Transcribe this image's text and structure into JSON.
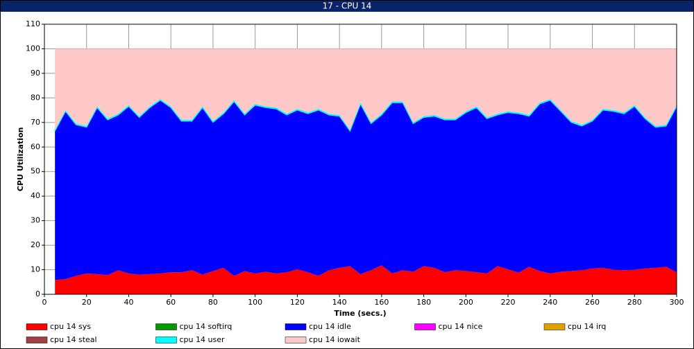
{
  "chart_data": {
    "type": "stacked_area",
    "title": "17 - CPU 14",
    "x_label": "Time (secs.)",
    "y_label": "CPU Utilization",
    "x": [
      5,
      10,
      15,
      20,
      25,
      30,
      35,
      40,
      45,
      50,
      55,
      60,
      65,
      70,
      75,
      80,
      85,
      90,
      95,
      100,
      105,
      110,
      115,
      120,
      125,
      130,
      135,
      140,
      145,
      150,
      155,
      160,
      165,
      170,
      175,
      180,
      185,
      190,
      195,
      200,
      205,
      210,
      215,
      220,
      225,
      230,
      235,
      240,
      245,
      250,
      255,
      260,
      265,
      270,
      275,
      280,
      285,
      290,
      295,
      300
    ],
    "xlim": [
      0,
      300
    ],
    "xticks": [
      0,
      20,
      40,
      60,
      80,
      100,
      120,
      140,
      160,
      180,
      200,
      220,
      240,
      260,
      280,
      300
    ],
    "ylim": [
      0,
      110
    ],
    "yticks": [
      0,
      10,
      20,
      30,
      40,
      50,
      60,
      70,
      80,
      90,
      100,
      110
    ],
    "grid": true,
    "series": [
      {
        "name": "cpu 14 sys",
        "color": "#ff0000",
        "values": [
          5.8,
          6.2,
          7.5,
          8.5,
          8.2,
          7.8,
          9.8,
          8.5,
          8.0,
          8.2,
          8.5,
          9.0,
          9.0,
          9.8,
          8.0,
          9.5,
          10.8,
          7.5,
          9.5,
          8.5,
          9.2,
          8.5,
          9.0,
          10.2,
          9.0,
          7.5,
          9.8,
          10.8,
          11.5,
          8.2,
          9.8,
          11.8,
          8.5,
          9.8,
          9.2,
          11.5,
          10.8,
          9.0,
          9.8,
          9.5,
          9.0,
          8.5,
          11.5,
          10.2,
          8.8,
          11.2,
          9.5,
          8.5,
          9.2,
          9.5,
          9.8,
          10.5,
          10.8,
          10.0,
          9.8,
          10.0,
          10.5,
          10.8,
          11.2,
          9.0
        ]
      },
      {
        "name": "cpu 14 softirq",
        "color": "#009900",
        "values": [
          0,
          0,
          0,
          0,
          0,
          0,
          0,
          0,
          0,
          0,
          0,
          0,
          0,
          0,
          0,
          0,
          0,
          0,
          0,
          0,
          0,
          0,
          0,
          0,
          0,
          0,
          0,
          0,
          0,
          0,
          0,
          0,
          0,
          0,
          0,
          0,
          0,
          0,
          0,
          0,
          0,
          0,
          0,
          0,
          0,
          0,
          0,
          0,
          0,
          0,
          0,
          0,
          0,
          0,
          0,
          0,
          0,
          0,
          0,
          0
        ]
      },
      {
        "name": "cpu 14 idle",
        "color": "#0000ff",
        "values": [
          60.8,
          68.4,
          61.6,
          59.6,
          67.9,
          63.3,
          63.3,
          68.1,
          64.1,
          67.9,
          70.6,
          67.1,
          61.6,
          60.8,
          68.1,
          60.6,
          62.8,
          71.1,
          63.6,
          68.6,
          66.9,
          67.1,
          64.1,
          64.9,
          64.6,
          67.6,
          63.3,
          61.8,
          55.1,
          69.4,
          59.8,
          61.3,
          69.6,
          68.3,
          60.4,
          60.6,
          61.8,
          62.1,
          61.3,
          64.6,
          67.1,
          63.1,
          61.6,
          63.9,
          64.8,
          61.4,
          68.1,
          70.6,
          65.4,
          60.6,
          58.8,
          60.1,
          64.3,
          64.6,
          63.8,
          66.6,
          61.1,
          57.3,
          57.4,
          67.6
        ]
      },
      {
        "name": "cpu 14 nice",
        "color": "#ff00ff",
        "values": [
          0,
          0,
          0,
          0,
          0,
          0,
          0,
          0,
          0,
          0,
          0,
          0,
          0,
          0,
          0,
          0,
          0,
          0,
          0,
          0,
          0,
          0,
          0,
          0,
          0,
          0,
          0,
          0,
          0,
          0,
          0,
          0,
          0,
          0,
          0,
          0,
          0,
          0,
          0,
          0,
          0,
          0,
          0,
          0,
          0,
          0,
          0,
          0,
          0,
          0,
          0,
          0,
          0,
          0,
          0,
          0,
          0,
          0,
          0,
          0
        ]
      },
      {
        "name": "cpu 14 irq",
        "color": "#e0a000",
        "values": [
          0,
          0,
          0,
          0,
          0,
          0,
          0,
          0,
          0,
          0,
          0,
          0,
          0,
          0,
          0,
          0,
          0,
          0,
          0,
          0,
          0,
          0,
          0,
          0,
          0,
          0,
          0,
          0,
          0,
          0,
          0,
          0,
          0,
          0,
          0,
          0,
          0,
          0,
          0,
          0,
          0,
          0,
          0,
          0,
          0,
          0,
          0,
          0,
          0,
          0,
          0,
          0,
          0,
          0,
          0,
          0,
          0,
          0,
          0,
          0
        ]
      },
      {
        "name": "cpu 14 steal",
        "color": "#a04040",
        "values": [
          0,
          0,
          0,
          0,
          0,
          0,
          0,
          0,
          0,
          0,
          0,
          0,
          0,
          0,
          0,
          0,
          0,
          0,
          0,
          0,
          0,
          0,
          0,
          0,
          0,
          0,
          0,
          0,
          0,
          0,
          0,
          0,
          0,
          0,
          0,
          0,
          0,
          0,
          0,
          0,
          0,
          0,
          0,
          0,
          0,
          0,
          0,
          0,
          0,
          0,
          0,
          0,
          0,
          0,
          0,
          0,
          0,
          0,
          0,
          0
        ]
      },
      {
        "name": "cpu 14 user",
        "color": "#00ffff",
        "values": [
          0.4,
          0.4,
          0.4,
          0.4,
          0.4,
          0.4,
          0.4,
          0.4,
          0.4,
          0.4,
          0.4,
          0.4,
          0.4,
          0.4,
          0.4,
          0.4,
          0.4,
          0.4,
          0.4,
          0.4,
          0.4,
          0.4,
          0.4,
          0.4,
          0.4,
          0.4,
          0.4,
          0.4,
          0.4,
          0.4,
          0.4,
          0.4,
          0.4,
          0.4,
          0.4,
          0.4,
          0.4,
          0.4,
          0.4,
          0.4,
          0.4,
          0.4,
          0.4,
          0.4,
          0.4,
          0.4,
          0.4,
          0.4,
          0.4,
          0.4,
          0.4,
          0.4,
          0.4,
          0.4,
          0.4,
          0.4,
          0.4,
          0.4,
          0.4,
          0.4
        ]
      },
      {
        "name": "cpu 14 iowait",
        "color": "#ffc8c8",
        "values": [
          33,
          25,
          30.5,
          31.5,
          23.5,
          28.5,
          26.5,
          23,
          27.5,
          23.5,
          20.5,
          23.5,
          29,
          29,
          23.5,
          29.5,
          26,
          21,
          26.5,
          22.5,
          23.5,
          24,
          26.5,
          24.5,
          26,
          24.5,
          26.5,
          27,
          33,
          22,
          30,
          26.5,
          21.5,
          21.5,
          30,
          27.5,
          27,
          28.5,
          28.5,
          25.5,
          23.5,
          28,
          26.5,
          25.5,
          26,
          27,
          22,
          20.5,
          25,
          29.5,
          31,
          29,
          24.5,
          25,
          26,
          23,
          28,
          31.5,
          31,
          23
        ]
      }
    ]
  }
}
